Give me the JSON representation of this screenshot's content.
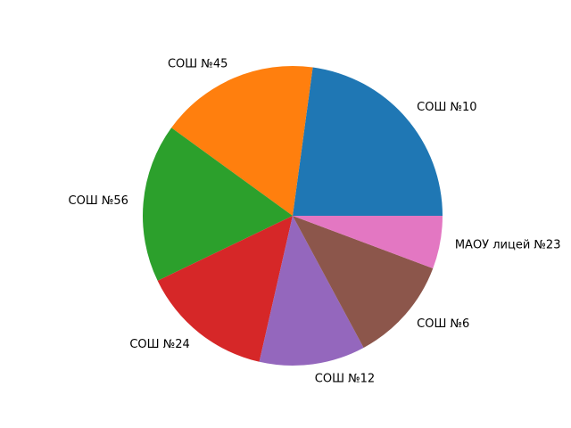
{
  "chart_data": {
    "type": "pie",
    "start_angle_deg": 0,
    "direction": "counterclockwise",
    "title": "",
    "slices": [
      {
        "label": "СОШ №10",
        "value": 4,
        "color": "#1f77b4"
      },
      {
        "label": "СОШ №45",
        "value": 3,
        "color": "#ff7f0e"
      },
      {
        "label": "СОШ №56",
        "value": 3,
        "color": "#2ca02c"
      },
      {
        "label": "СОШ №24",
        "value": 2.5,
        "color": "#d62728"
      },
      {
        "label": "СОШ №12",
        "value": 2,
        "color": "#9467bd"
      },
      {
        "label": "СОШ №6",
        "value": 2,
        "color": "#8c564b"
      },
      {
        "label": "МАОУ лицей №23",
        "value": 1,
        "color": "#e377c2"
      }
    ]
  }
}
